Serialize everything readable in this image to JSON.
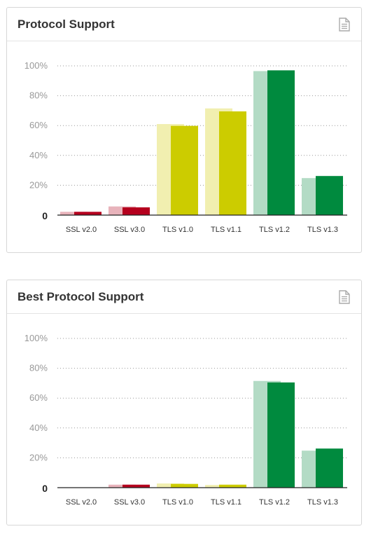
{
  "panels": [
    {
      "title": "Protocol Support",
      "icon": "document-icon"
    },
    {
      "title": "Best Protocol Support",
      "icon": "document-icon"
    }
  ],
  "colors": {
    "ssl_light": "#e8b3bb",
    "ssl_dark": "#b5001e",
    "tls_old_light": "#f1efb0",
    "tls_old_dark": "#cccc00",
    "tls_new_light": "#b3dbc5",
    "tls_new_dark": "#008a3e",
    "grid": "#999999"
  },
  "chart_data": [
    {
      "type": "bar",
      "title": "Protocol Support",
      "categories": [
        "SSL v2.0",
        "SSL v3.0",
        "TLS v1.0",
        "TLS v1.1",
        "TLS v1.2",
        "TLS v1.3"
      ],
      "ylim": [
        0,
        100
      ],
      "yticks": [
        "0",
        "20%",
        "40%",
        "60%",
        "80%",
        "100%"
      ],
      "grid": true,
      "legend": "none",
      "series": [
        {
          "values": [
            2.2,
            5.8,
            61,
            71.5,
            96.5,
            24.8
          ]
        },
        {
          "values": [
            2.2,
            5.2,
            59.8,
            69.5,
            97,
            26.2
          ]
        }
      ]
    },
    {
      "type": "bar",
      "title": "Best Protocol Support",
      "categories": [
        "SSL v2.0",
        "SSL v3.0",
        "TLS v1.0",
        "TLS v1.1",
        "TLS v1.2",
        "TLS v1.3"
      ],
      "ylim": [
        0,
        100
      ],
      "yticks": [
        "0",
        "20%",
        "40%",
        "60%",
        "80%",
        "100%"
      ],
      "grid": true,
      "legend": "none",
      "series": [
        {
          "values": [
            0,
            2,
            2.8,
            1.8,
            71.5,
            24.8
          ]
        },
        {
          "values": [
            0,
            2,
            2.5,
            2,
            70.5,
            26.2
          ]
        }
      ]
    }
  ]
}
